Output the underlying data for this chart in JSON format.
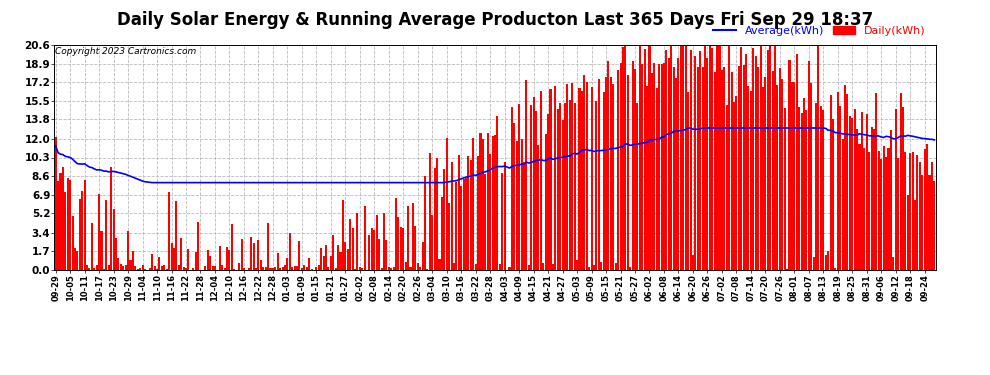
{
  "title": "Daily Solar Energy & Running Average Producton Last 365 Days Fri Sep 29 18:37",
  "copyright": "Copyright 2023 Cartronics.com",
  "legend_avg": "Average(kWh)",
  "legend_daily": "Daily(kWh)",
  "ylabel_ticks": [
    0.0,
    1.7,
    3.4,
    5.2,
    6.9,
    8.6,
    10.3,
    12.0,
    13.8,
    15.5,
    17.2,
    18.9,
    20.6
  ],
  "ylim": [
    0.0,
    20.6
  ],
  "bar_color": "#ff0000",
  "avg_line_color": "#0000ff",
  "background_color": "#ffffff",
  "grid_color": "#bbbbbb",
  "title_fontsize": 12,
  "n_bars": 365,
  "x_tick_labels": [
    "09-29",
    "10-05",
    "10-11",
    "10-17",
    "10-23",
    "10-29",
    "11-04",
    "11-10",
    "11-16",
    "11-22",
    "11-28",
    "12-04",
    "12-10",
    "12-16",
    "12-22",
    "12-28",
    "01-03",
    "01-09",
    "01-15",
    "01-21",
    "01-27",
    "02-02",
    "02-08",
    "02-14",
    "02-20",
    "02-26",
    "03-04",
    "03-10",
    "03-16",
    "03-22",
    "03-28",
    "04-03",
    "04-09",
    "04-15",
    "04-21",
    "04-27",
    "05-03",
    "05-09",
    "05-15",
    "05-21",
    "05-27",
    "06-02",
    "06-08",
    "06-14",
    "06-20",
    "06-26",
    "07-02",
    "07-08",
    "07-14",
    "07-20",
    "07-26",
    "08-01",
    "08-07",
    "08-13",
    "08-19",
    "08-25",
    "08-31",
    "09-06",
    "09-12",
    "09-18",
    "09-24"
  ],
  "x_tick_positions": [
    0,
    6,
    12,
    18,
    24,
    30,
    36,
    42,
    48,
    54,
    60,
    66,
    72,
    78,
    84,
    90,
    96,
    102,
    108,
    114,
    120,
    126,
    132,
    138,
    144,
    150,
    156,
    162,
    168,
    174,
    180,
    186,
    192,
    198,
    204,
    210,
    216,
    222,
    228,
    234,
    240,
    246,
    252,
    258,
    264,
    270,
    276,
    282,
    288,
    294,
    300,
    306,
    312,
    318,
    324,
    330,
    336,
    342,
    348,
    354,
    360
  ]
}
